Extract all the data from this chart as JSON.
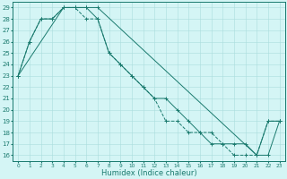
{
  "title": "",
  "xlabel": "Humidex (Indice chaleur)",
  "bg_color": "#d4f5f5",
  "line_color": "#1a7a6e",
  "grid_color": "#aadddd",
  "line1_x": [
    0,
    1,
    2,
    3,
    4,
    5,
    6,
    7,
    8,
    9,
    10,
    11,
    12,
    13,
    14,
    15,
    16,
    17,
    18,
    19,
    20,
    21,
    22,
    23
  ],
  "line1_y": [
    23,
    26,
    28,
    28,
    29,
    29,
    28,
    28,
    25,
    24,
    23,
    22,
    21,
    19,
    19,
    18,
    18,
    18,
    17,
    16,
    16,
    16,
    19,
    19
  ],
  "line2_x": [
    0,
    1,
    2,
    3,
    4,
    5,
    6,
    7,
    8,
    9,
    10,
    11,
    12,
    13,
    14,
    15,
    16,
    17,
    18,
    19,
    20,
    21,
    22,
    23
  ],
  "line2_y": [
    23,
    26,
    28,
    28,
    29,
    29,
    29,
    28,
    25,
    24,
    23,
    22,
    21,
    21,
    20,
    19,
    18,
    17,
    17,
    17,
    17,
    16,
    19,
    19
  ],
  "line3_x": [
    0,
    4,
    5,
    6,
    7,
    21,
    22,
    23
  ],
  "line3_y": [
    23,
    29,
    29,
    29,
    29,
    16,
    16,
    19
  ],
  "ylim_min": 15.5,
  "ylim_max": 29.5,
  "xlim_min": -0.5,
  "xlim_max": 23.5,
  "yticks": [
    16,
    17,
    18,
    19,
    20,
    21,
    22,
    23,
    24,
    25,
    26,
    27,
    28,
    29
  ],
  "xticks": [
    0,
    1,
    2,
    3,
    4,
    5,
    6,
    7,
    8,
    9,
    10,
    11,
    12,
    13,
    14,
    15,
    16,
    17,
    18,
    19,
    20,
    21,
    22,
    23
  ],
  "tick_fontsize": 5,
  "xlabel_fontsize": 6
}
